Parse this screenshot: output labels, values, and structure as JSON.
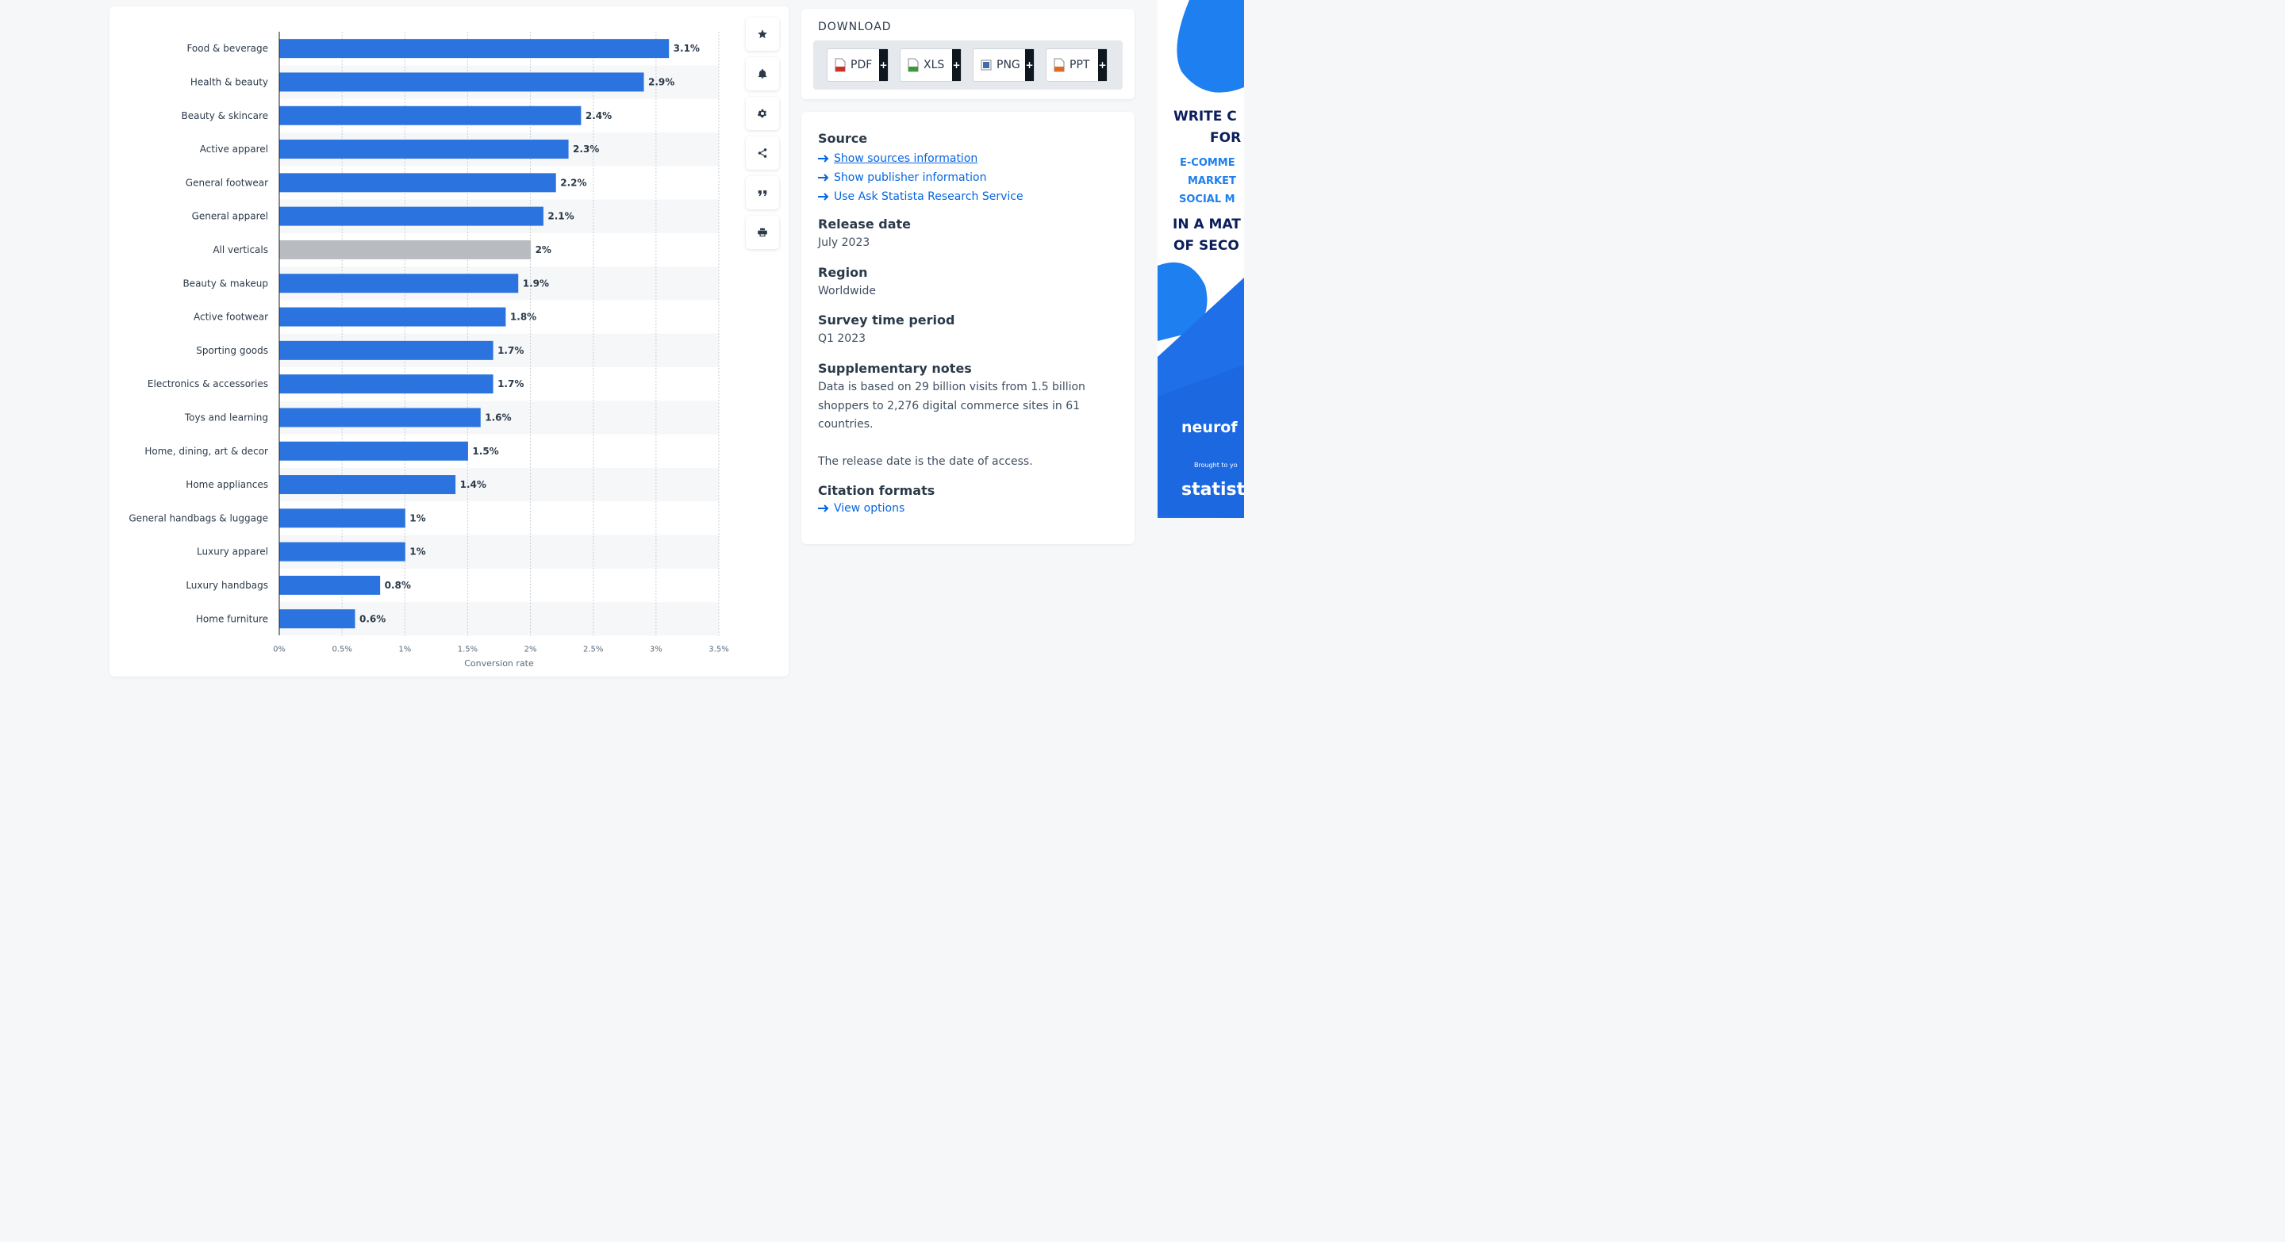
{
  "chart_data": {
    "type": "bar",
    "orientation": "horizontal",
    "categories": [
      "Food & beverage",
      "Health & beauty",
      "Beauty & skincare",
      "Active apparel",
      "General footwear",
      "General apparel",
      "All verticals",
      "Beauty & makeup",
      "Active footwear",
      "Sporting goods",
      "Electronics & accessories",
      "Toys and learning",
      "Home, dining, art & decor",
      "Home appliances",
      "General handbags & luggage",
      "Luxury apparel",
      "Luxury handbags",
      "Home furniture"
    ],
    "values": [
      3.1,
      2.9,
      2.4,
      2.3,
      2.2,
      2.1,
      2.0,
      1.9,
      1.8,
      1.7,
      1.7,
      1.6,
      1.5,
      1.4,
      1.0,
      1.0,
      0.8,
      0.6
    ],
    "value_labels": [
      "3.1%",
      "2.9%",
      "2.4%",
      "2.3%",
      "2.2%",
      "2.1%",
      "2%",
      "1.9%",
      "1.8%",
      "1.7%",
      "1.7%",
      "1.6%",
      "1.5%",
      "1.4%",
      "1%",
      "1%",
      "0.8%",
      "0.6%"
    ],
    "highlight_category": "All verticals",
    "xlabel": "Conversion rate",
    "xlim": [
      0,
      3.5
    ],
    "xticks": [
      0,
      0.5,
      1,
      1.5,
      2,
      2.5,
      3,
      3.5
    ],
    "xtick_labels": [
      "0%",
      "0.5%",
      "1%",
      "1.5%",
      "2%",
      "2.5%",
      "3%",
      "3.5%"
    ],
    "grid": true,
    "colors": {
      "bar": "#2b74e0",
      "highlight": "#b8bcc1",
      "zebra": "#f6f7f9"
    }
  },
  "tools": [
    "star-icon",
    "bell-icon",
    "gear-icon",
    "share-icon",
    "quote-icon",
    "print-icon"
  ],
  "download": {
    "title": "DOWNLOAD",
    "buttons": [
      {
        "label": "PDF",
        "icon_color": "#c8342a"
      },
      {
        "label": "XLS",
        "icon_color": "#3a9a3a"
      },
      {
        "label": "PNG",
        "icon_color": "#3d6fb0"
      },
      {
        "label": "PPT",
        "icon_color": "#e06a1f"
      }
    ],
    "plus": "+"
  },
  "info": {
    "source_title": "Source",
    "source_links": [
      " Show sources information",
      "Show publisher information",
      "Use Ask Statista Research Service"
    ],
    "release_title": "Release date",
    "release_value": "July 2023",
    "region_title": "Region",
    "region_value": "Worldwide",
    "survey_title": "Survey time period",
    "survey_value": "Q1 2023",
    "notes_title": "Supplementary notes",
    "notes_text": "Data is based on 29 billion visits from 1.5 billion shoppers to 2,276 digital commerce sites in 61 countries.",
    "notes_text2": "The release date is the date of access.",
    "citation_title": "Citation formats",
    "citation_link": "View options"
  },
  "ad": {
    "line1": "WRITE C",
    "line2": "FOR",
    "line3": "E-COMME",
    "line4": "MARKET",
    "line5": "SOCIAL M",
    "line6": "IN A MAT",
    "line7": "OF SECO",
    "brand": "neurof",
    "brought": "Brought to yo",
    "statista": "statista",
    "colors": {
      "dark": "#0b1e5b",
      "blue": "#1d7ff0",
      "bg": "#1f6fe8"
    }
  }
}
